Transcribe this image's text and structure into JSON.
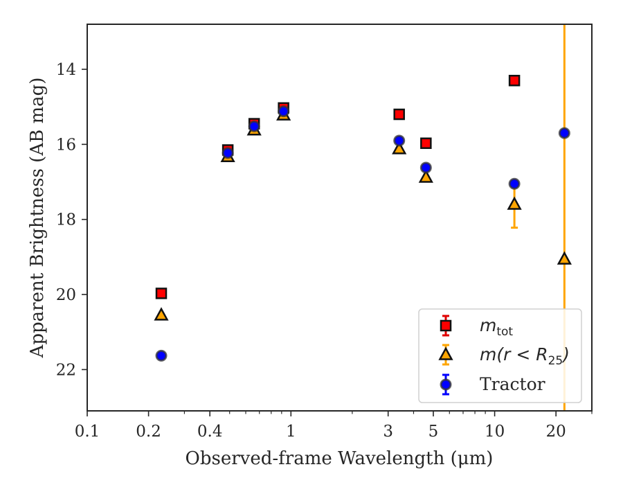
{
  "chart_data": {
    "type": "scatter",
    "xlabel": "Observed-frame Wavelength (μm)",
    "ylabel": "Apparent Brightness (AB mag)",
    "x_scale": "log",
    "xlim": [
      0.1,
      30
    ],
    "ylim": [
      23.1,
      12.8
    ],
    "y_inverted": true,
    "x_ticks": [
      {
        "value": 0.1,
        "label": "0.1"
      },
      {
        "value": 0.2,
        "label": "0.2"
      },
      {
        "value": 0.4,
        "label": "0.4"
      },
      {
        "value": 1,
        "label": "1"
      },
      {
        "value": 3,
        "label": "3"
      },
      {
        "value": 5,
        "label": "5"
      },
      {
        "value": 10,
        "label": "10"
      },
      {
        "value": 20,
        "label": "20"
      }
    ],
    "y_ticks": [
      {
        "value": 14,
        "label": "14"
      },
      {
        "value": 16,
        "label": "16"
      },
      {
        "value": 18,
        "label": "18"
      },
      {
        "value": 20,
        "label": "20"
      },
      {
        "value": 22,
        "label": "22"
      }
    ],
    "grid": false,
    "legend_position": "lower-right",
    "series": [
      {
        "name": "m_tot",
        "legend_main": "m",
        "legend_sub": "tot",
        "marker": "square",
        "color": "#ff0000",
        "errcolor": "#e00000",
        "points": [
          {
            "x": 0.231,
            "y": 19.97
          },
          {
            "x": 0.49,
            "y": 16.15
          },
          {
            "x": 0.66,
            "y": 15.45
          },
          {
            "x": 0.92,
            "y": 15.03
          },
          {
            "x": 3.4,
            "y": 15.2
          },
          {
            "x": 4.6,
            "y": 15.97
          },
          {
            "x": 12.5,
            "y": 14.3
          }
        ]
      },
      {
        "name": "m(r < R25)",
        "legend_main": "m(r < R",
        "legend_sub": "25",
        "legend_tail": ")",
        "marker": "triangle",
        "color": "#ffa500",
        "errcolor": "#ffa500",
        "points": [
          {
            "x": 0.231,
            "y": 20.55
          },
          {
            "x": 0.49,
            "y": 16.33
          },
          {
            "x": 0.66,
            "y": 15.62
          },
          {
            "x": 0.92,
            "y": 15.22
          },
          {
            "x": 3.4,
            "y": 16.12
          },
          {
            "x": 4.6,
            "y": 16.88
          },
          {
            "x": 12.5,
            "y": 17.6,
            "yerr": [
              17.0,
              18.22
            ]
          },
          {
            "x": 22.0,
            "y": 19.06,
            "yerr": [
              12.8,
              23.1
            ]
          }
        ]
      },
      {
        "name": "Tractor",
        "marker": "circle",
        "color": "#0000ff",
        "errcolor": "#0000ff",
        "points": [
          {
            "x": 0.231,
            "y": 21.63
          },
          {
            "x": 0.49,
            "y": 16.23
          },
          {
            "x": 0.66,
            "y": 15.52
          },
          {
            "x": 0.92,
            "y": 15.12
          },
          {
            "x": 3.4,
            "y": 15.9
          },
          {
            "x": 4.6,
            "y": 16.62
          },
          {
            "x": 12.5,
            "y": 17.05
          },
          {
            "x": 22.0,
            "y": 15.7
          }
        ]
      }
    ]
  }
}
